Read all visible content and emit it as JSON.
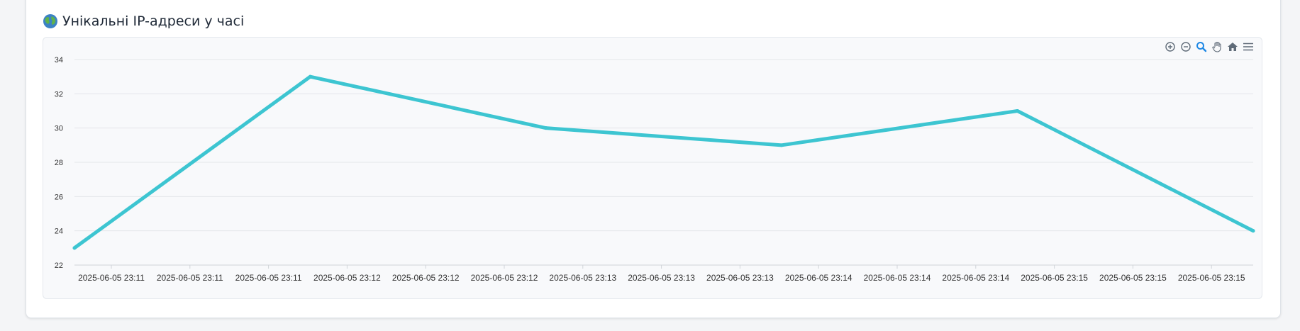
{
  "card": {
    "title": "Унікальні IP-адреси у часі",
    "title_icon": "globe-icon"
  },
  "toolbar": [
    {
      "name": "zoom-in-icon"
    },
    {
      "name": "zoom-out-icon"
    },
    {
      "name": "selection-zoom-icon"
    },
    {
      "name": "pan-hand-icon"
    },
    {
      "name": "reset-home-icon"
    },
    {
      "name": "menu-icon"
    }
  ],
  "colors": {
    "series": "#3dc5d1",
    "grid": "#e3e6ea",
    "accent_tool": "#1e88e5",
    "tool": "#5f6b78"
  },
  "chart_data": {
    "type": "line",
    "title": "Унікальні IP-адреси у часі",
    "xlabel": "",
    "ylabel": "",
    "ylim": [
      22,
      34
    ],
    "yticks": [
      22,
      24,
      26,
      28,
      30,
      32,
      34
    ],
    "grid": true,
    "x_ticks": [
      "2025-06-05 23:11",
      "2025-06-05 23:11",
      "2025-06-05 23:11",
      "2025-06-05 23:12",
      "2025-06-05 23:12",
      "2025-06-05 23:12",
      "2025-06-05 23:13",
      "2025-06-05 23:13",
      "2025-06-05 23:13",
      "2025-06-05 23:14",
      "2025-06-05 23:14",
      "2025-06-05 23:14",
      "2025-06-05 23:15",
      "2025-06-05 23:15",
      "2025-06-05 23:15"
    ],
    "series": [
      {
        "values": [
          23,
          33,
          30,
          29,
          31,
          24
        ]
      }
    ]
  }
}
